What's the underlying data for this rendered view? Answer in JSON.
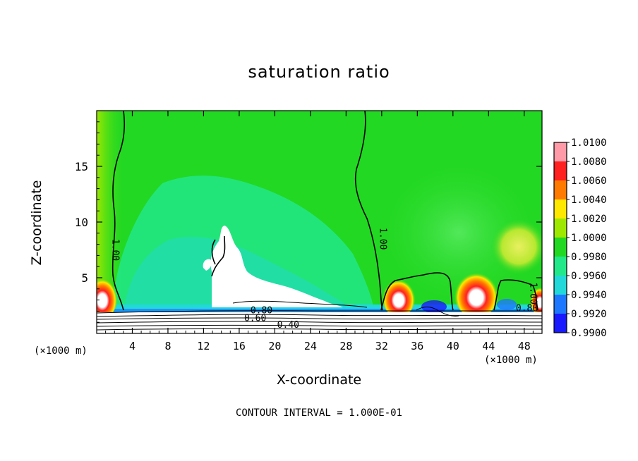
{
  "chart_data": {
    "type": "heatmap",
    "title": "saturation ratio",
    "xlabel": "X-coordinate",
    "ylabel": "Z-coordinate",
    "x_unit_label": "(×1000 m)",
    "x_unit_label_right": "(×1000 m)",
    "xlim": [
      0,
      50
    ],
    "ylim": [
      0,
      20
    ],
    "x_ticks": [
      4,
      8,
      12,
      16,
      20,
      24,
      28,
      32,
      36,
      40,
      44,
      48
    ],
    "y_ticks": [
      5,
      10,
      15
    ],
    "footer": "CONTOUR INTERVAL = 1.000E-01",
    "colorbar": {
      "levels": [
        "1.0100",
        "1.0080",
        "1.0060",
        "1.0040",
        "1.0020",
        "1.0000",
        "0.9980",
        "0.9960",
        "0.9940",
        "0.9920",
        "0.9900"
      ],
      "colors": [
        "#ff9aa8",
        "#ff2020",
        "#ff7a00",
        "#ffe800",
        "#9ee800",
        "#22d822",
        "#22e88a",
        "#22d8d8",
        "#1e78ff",
        "#1a1aff",
        "#7a1aa8"
      ]
    },
    "contour_labels": [
      {
        "text": "1.00",
        "x": 1.8,
        "y": 7.5
      },
      {
        "text": "1.00",
        "x": 31.8,
        "y": 8.5
      },
      {
        "text": "0.80",
        "x": 18.5,
        "y": 1.8
      },
      {
        "text": "0.60",
        "x": 17.8,
        "y": 1.1
      },
      {
        "text": "0.40",
        "x": 21.5,
        "y": 0.5
      },
      {
        "text": "0.80",
        "x": 48.3,
        "y": 2.0
      },
      {
        "text": "1.00",
        "x": 48.7,
        "y": 3.6
      }
    ]
  }
}
